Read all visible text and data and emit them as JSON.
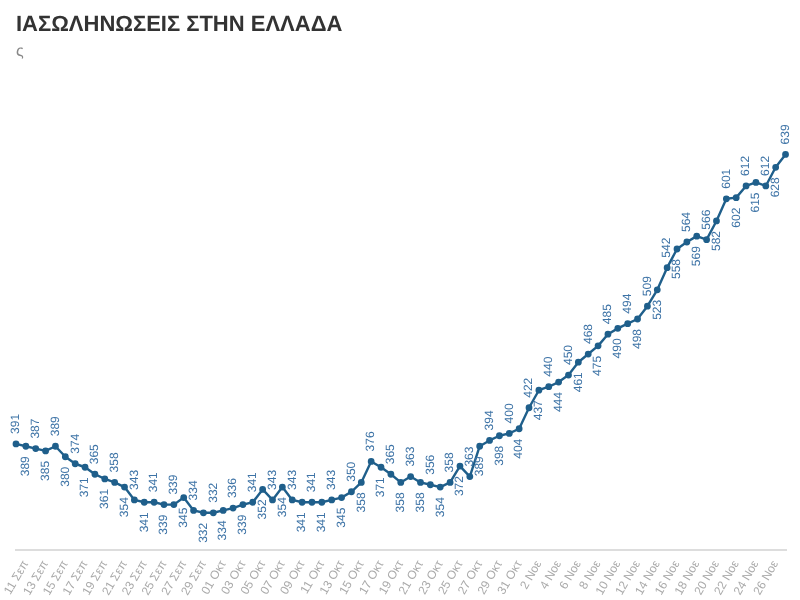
{
  "chart_data": {
    "type": "line",
    "title": "ΙΑΣΩΛΗΝΩΣΕΙΣ ΣΤΗΝ ΕΛΛΑΔΑ",
    "subtitle": "ς",
    "categories": [
      null,
      "11 Σεπ",
      null,
      "13 Σεπ",
      null,
      "15 Σεπ",
      null,
      "17 Σεπ",
      null,
      "19 Σεπ",
      null,
      "21 Σεπ",
      null,
      "23 Σεπ",
      null,
      "25 Σεπ",
      null,
      "27 Σεπ",
      null,
      "29 Σεπ",
      null,
      "01 Οκτ",
      null,
      "03 Οκτ",
      null,
      "05 Οκτ",
      null,
      "07 Οκτ",
      null,
      "09 Οκτ",
      null,
      "11 Οκτ",
      null,
      "13 Οκτ",
      null,
      "15 Οκτ",
      null,
      "17 Οκτ",
      null,
      "19 Οκτ",
      null,
      "21 Οκτ",
      null,
      "23 Οκτ",
      null,
      "25 Οκτ",
      null,
      "27 Οκτ",
      null,
      "29 Οκτ",
      null,
      "31 Οκτ",
      null,
      "2 Νοε",
      null,
      "4 Νοε",
      null,
      "6 Νοε",
      null,
      "8 Νοε",
      null,
      "10 Νοε",
      null,
      "12 Νοε",
      null,
      "14 Νοε",
      null,
      "16 Νοε",
      null,
      "18 Νοε",
      null,
      "20 Νοε",
      null,
      "22 Νοε",
      null,
      "24 Νοε",
      null,
      "26 Νοε",
      null
    ],
    "series": [
      {
        "color": "#1f5f8b",
        "values": [
          391,
          389,
          387,
          385,
          389,
          380,
          374,
          371,
          365,
          361,
          358,
          354,
          343,
          341,
          341,
          339,
          339,
          345,
          334,
          332,
          332,
          334,
          336,
          339,
          341,
          352,
          343,
          354,
          343,
          341,
          341,
          341,
          343,
          345,
          350,
          358,
          376,
          371,
          365,
          358,
          363,
          358,
          356,
          354,
          358,
          372,
          363,
          389,
          394,
          398,
          400,
          404,
          422,
          437,
          440,
          444,
          450,
          461,
          468,
          475,
          485,
          490,
          494,
          498,
          509,
          523,
          542,
          558,
          564,
          569,
          566,
          582,
          601,
          602,
          612,
          615,
          612,
          628,
          639
        ]
      }
    ],
    "data_labels": true,
    "marker": "circle",
    "grid": false,
    "legend": false
  }
}
